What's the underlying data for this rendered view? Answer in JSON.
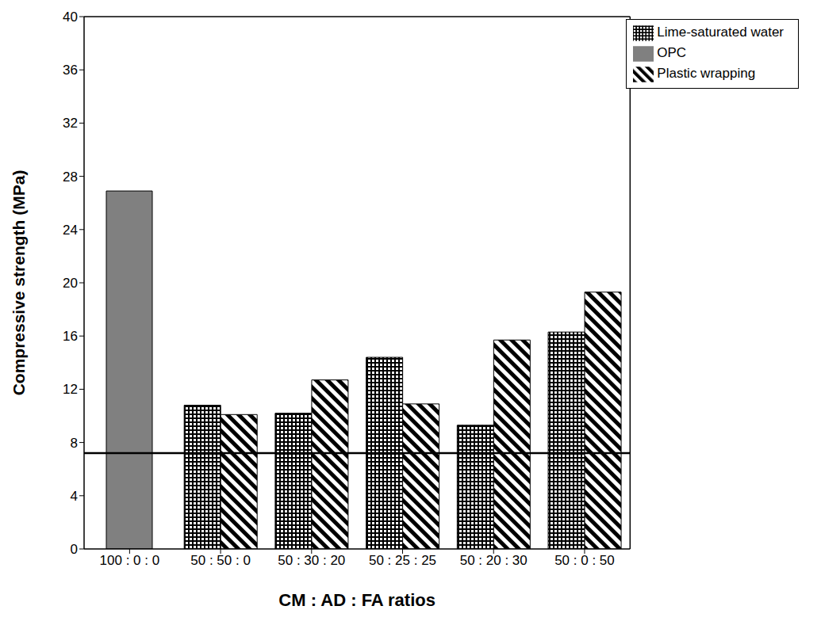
{
  "chart_data": {
    "type": "bar",
    "x_label": "CM : AD : FA  ratios",
    "y_label": "Compressive strength (MPa)",
    "categories": [
      "100 : 0 : 0",
      "50 : 50 : 0",
      "50 : 30 : 20",
      "50 : 25 : 25",
      "50 : 20 : 30",
      "50 : 0 : 50"
    ],
    "series": [
      {
        "name": "Lime-saturated water",
        "color": "#000000",
        "values": [
          null,
          10.8,
          10.2,
          14.4,
          9.3,
          16.3
        ]
      },
      {
        "name": "Plastic wrapping",
        "color": "#000000",
        "values": [
          null,
          10.1,
          12.7,
          10.9,
          15.7,
          19.3
        ]
      },
      {
        "name": "OPC",
        "color": "#808080",
        "values": [
          26.9,
          null,
          null,
          null,
          null,
          null
        ]
      }
    ],
    "hline": 7.2,
    "ylim": [
      0,
      40
    ],
    "yticks": [
      0,
      4,
      8,
      12,
      16,
      20,
      24,
      28,
      32,
      36,
      40
    ],
    "grid": false,
    "legend": "upper right"
  }
}
